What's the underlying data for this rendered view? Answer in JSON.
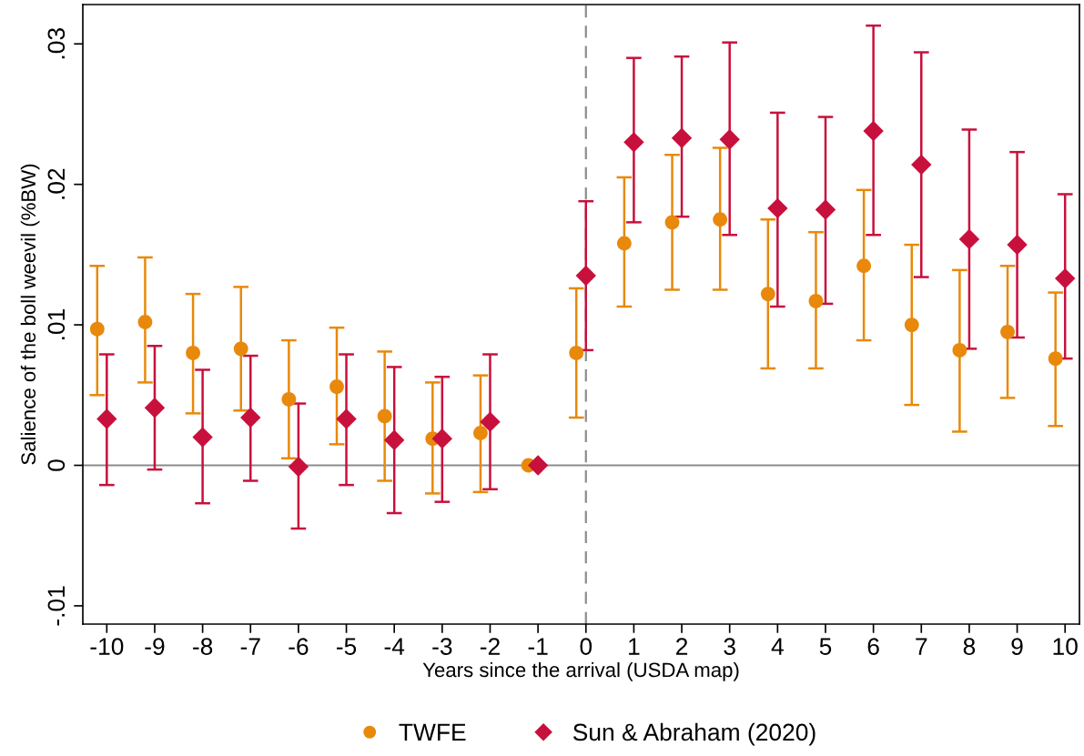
{
  "chart_data": {
    "type": "scatter",
    "xlabel": "Years since the arrival (USDA map)",
    "ylabel": "Salience of the boll weevil (%BW)",
    "xlim": [
      -10.5,
      10.3
    ],
    "xticks": [
      -10,
      -9,
      -8,
      -7,
      -6,
      -5,
      -4,
      -3,
      -2,
      -1,
      0,
      1,
      2,
      3,
      4,
      5,
      6,
      7,
      8,
      9,
      10
    ],
    "ylim": [
      -0.0113,
      0.0328
    ],
    "yticks": [
      {
        "value": -0.01,
        "label": "-.01"
      },
      {
        "value": 0,
        "label": "0"
      },
      {
        "value": 0.01,
        "label": ".01"
      },
      {
        "value": 0.02,
        "label": ".02"
      },
      {
        "value": 0.03,
        "label": ".03"
      }
    ],
    "grid": false,
    "legend": "bottom",
    "ref_lines": [
      {
        "axis": "y",
        "value": 0,
        "color": "#8c8c8c",
        "line_style": "solid"
      },
      {
        "axis": "x",
        "value": 0,
        "color": "#8c8c8c",
        "line_style": "dashed"
      }
    ],
    "series": [
      {
        "name": "TWFE",
        "color": "#e8890c",
        "marker": "circle",
        "x": [
          -10.2,
          -9.2,
          -8.2,
          -7.2,
          -6.2,
          -5.2,
          -4.2,
          -3.2,
          -2.2,
          -1.2,
          -0.2,
          0.8,
          1.8,
          2.8,
          3.8,
          4.8,
          5.8,
          6.8,
          7.8,
          8.8,
          9.8
        ],
        "values": [
          0.0097,
          0.0102,
          0.008,
          0.0083,
          0.0047,
          0.0056,
          0.0035,
          0.0019,
          0.0023,
          0,
          0.008,
          0.0158,
          0.0173,
          0.0175,
          0.0122,
          0.0117,
          0.0142,
          0.01,
          0.0082,
          0.0095,
          0.0076
        ],
        "errors": [
          [
            0.005,
            0.0142
          ],
          [
            0.0059,
            0.0148
          ],
          [
            0.0037,
            0.0122
          ],
          [
            0.0039,
            0.0127
          ],
          [
            0.0005,
            0.0089
          ],
          [
            0.0015,
            0.0098
          ],
          [
            -0.0011,
            0.0081
          ],
          [
            -0.002,
            0.0059
          ],
          [
            -0.0019,
            0.0064
          ],
          null,
          [
            0.0034,
            0.0126
          ],
          [
            0.0113,
            0.0205
          ],
          [
            0.0125,
            0.0221
          ],
          [
            0.0125,
            0.0226
          ],
          [
            0.0069,
            0.0175
          ],
          [
            0.0069,
            0.0166
          ],
          [
            0.0089,
            0.0196
          ],
          [
            0.0043,
            0.0157
          ],
          [
            0.0024,
            0.0139
          ],
          [
            0.0048,
            0.0142
          ],
          [
            0.0028,
            0.0123
          ]
        ]
      },
      {
        "name": "Sun & Abraham (2020)",
        "color": "#c8103c",
        "marker": "diamond",
        "x": [
          -10,
          -9,
          -8,
          -7,
          -6,
          -5,
          -4,
          -3,
          -2,
          -1,
          0,
          1,
          2,
          3,
          4,
          5,
          6,
          7,
          8,
          9,
          10
        ],
        "values": [
          0.0033,
          0.0041,
          0.002,
          0.0034,
          -0.0001,
          0.0033,
          0.0018,
          0.0019,
          0.0031,
          0,
          0.0135,
          0.023,
          0.0233,
          0.0232,
          0.0183,
          0.0182,
          0.0238,
          0.0214,
          0.0161,
          0.0157,
          0.0133
        ],
        "errors": [
          [
            -0.0014,
            0.0079
          ],
          [
            -0.0003,
            0.0085
          ],
          [
            -0.0027,
            0.0068
          ],
          [
            -0.0011,
            0.0078
          ],
          [
            -0.0045,
            0.0044
          ],
          [
            -0.0014,
            0.0079
          ],
          [
            -0.0034,
            0.007
          ],
          [
            -0.0026,
            0.0063
          ],
          [
            -0.0017,
            0.0079
          ],
          null,
          [
            0.0082,
            0.0188
          ],
          [
            0.0173,
            0.029
          ],
          [
            0.0177,
            0.0291
          ],
          [
            0.0164,
            0.0301
          ],
          [
            0.0113,
            0.0251
          ],
          [
            0.0115,
            0.0248
          ],
          [
            0.0164,
            0.0313
          ],
          [
            0.0134,
            0.0294
          ],
          [
            0.0083,
            0.0239
          ],
          [
            0.0091,
            0.0223
          ],
          [
            0.0076,
            0.0193
          ]
        ]
      }
    ]
  }
}
